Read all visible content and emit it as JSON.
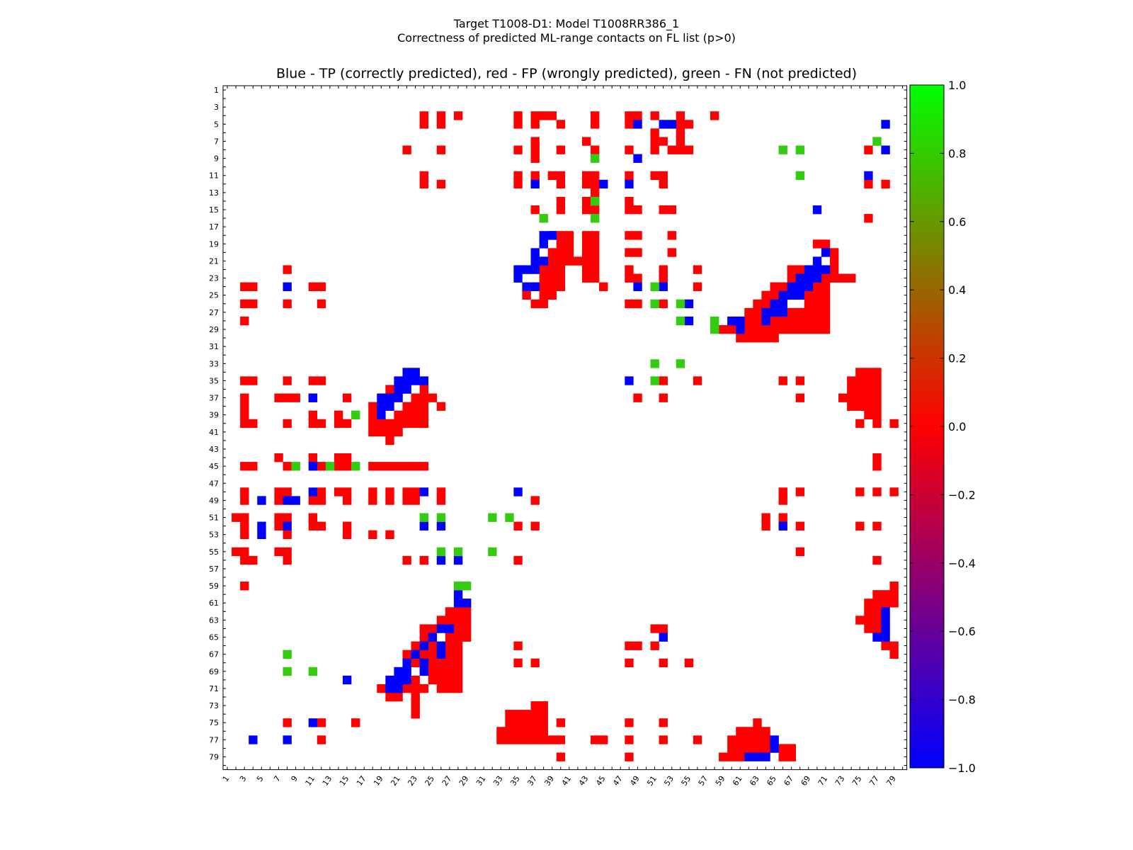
{
  "figure": {
    "suptitle_line1": "Target T1008-D1: Model T1008RR386_1",
    "suptitle_line2": "Correctness of predicted ML-range contacts on FL list (p>0)",
    "axes_title": "Blue - TP (correctly predicted), red - FP (wrongly predicted), green - FN (not predicted)"
  },
  "colors": {
    "tp": "#0000ff",
    "fp": "#ff0000",
    "fn": "#33cc11",
    "frame": "#000000"
  },
  "chart_data": {
    "type": "heatmap",
    "n": 80,
    "xlim": [
      0,
      80
    ],
    "ylim": [
      80,
      0
    ],
    "x_ticks": [
      1,
      3,
      5,
      7,
      9,
      11,
      13,
      15,
      17,
      19,
      21,
      23,
      25,
      27,
      29,
      31,
      33,
      35,
      37,
      39,
      41,
      43,
      45,
      47,
      49,
      51,
      53,
      55,
      57,
      59,
      61,
      63,
      65,
      67,
      69,
      71,
      73,
      75,
      77,
      79
    ],
    "y_ticks": [
      1,
      3,
      5,
      7,
      9,
      11,
      13,
      15,
      17,
      19,
      21,
      23,
      25,
      27,
      29,
      31,
      33,
      35,
      37,
      39,
      41,
      43,
      45,
      47,
      49,
      51,
      53,
      55,
      57,
      59,
      61,
      63,
      65,
      67,
      69,
      71,
      73,
      75,
      77,
      79
    ],
    "value_meaning": {
      "-1": "TP (blue)",
      "0": "FP (red)",
      "1": "FN (green)"
    },
    "colorbar": {
      "range": [
        -1.0,
        1.0
      ],
      "ticks": [
        "1.0",
        "0.8",
        "0.6",
        "0.4",
        "0.2",
        "0.0",
        "−0.2",
        "−0.4",
        "−0.6",
        "−0.8",
        "−1.0"
      ],
      "stops": [
        "#00ff00",
        "#ff0000",
        "#0000ff"
      ]
    },
    "cells": {
      "tp": [
        [
          5,
          49
        ],
        [
          5,
          52
        ],
        [
          5,
          53
        ],
        [
          5,
          78
        ],
        [
          9,
          49
        ],
        [
          8,
          78
        ],
        [
          12,
          45
        ],
        [
          12,
          37
        ],
        [
          12,
          48
        ],
        [
          11,
          76
        ],
        [
          15,
          70
        ],
        [
          18,
          38
        ],
        [
          18,
          39
        ],
        [
          19,
          38
        ],
        [
          20,
          37
        ],
        [
          21,
          37
        ],
        [
          21,
          38
        ],
        [
          21,
          70
        ],
        [
          20,
          71
        ],
        [
          22,
          35
        ],
        [
          22,
          36
        ],
        [
          22,
          37
        ],
        [
          22,
          69
        ],
        [
          22,
          70
        ],
        [
          22,
          71
        ],
        [
          23,
          35
        ],
        [
          23,
          68
        ],
        [
          23,
          69
        ],
        [
          23,
          70
        ],
        [
          24,
          36
        ],
        [
          24,
          37
        ],
        [
          24,
          67
        ],
        [
          24,
          68
        ],
        [
          24,
          69
        ],
        [
          24,
          8
        ],
        [
          24,
          49
        ],
        [
          24,
          52
        ],
        [
          25,
          66
        ],
        [
          25,
          67
        ],
        [
          25,
          68
        ],
        [
          26,
          65
        ],
        [
          26,
          66
        ],
        [
          26,
          55
        ],
        [
          27,
          64
        ],
        [
          27,
          65
        ],
        [
          27,
          66
        ],
        [
          28,
          55
        ],
        [
          28,
          60
        ],
        [
          28,
          61
        ],
        [
          28,
          64
        ],
        [
          29,
          61
        ],
        [
          34,
          22
        ],
        [
          34,
          23
        ],
        [
          35,
          21
        ],
        [
          35,
          22
        ],
        [
          35,
          23
        ],
        [
          35,
          24
        ],
        [
          36,
          21
        ],
        [
          36,
          22
        ],
        [
          37,
          19
        ],
        [
          37,
          20
        ],
        [
          37,
          21
        ],
        [
          37,
          11
        ],
        [
          38,
          19
        ],
        [
          38,
          20
        ],
        [
          39,
          19
        ],
        [
          45,
          11
        ],
        [
          48,
          11
        ],
        [
          48,
          24
        ],
        [
          48,
          35
        ],
        [
          49,
          5
        ],
        [
          49,
          8
        ],
        [
          49,
          9
        ],
        [
          35,
          48
        ],
        [
          52,
          5
        ],
        [
          52,
          8
        ],
        [
          52,
          24
        ],
        [
          52,
          26
        ],
        [
          52,
          66
        ],
        [
          53,
          5
        ],
        [
          56,
          26
        ],
        [
          56,
          28
        ],
        [
          60,
          28
        ],
        [
          61,
          28
        ],
        [
          61,
          29
        ],
        [
          62,
          78
        ],
        [
          63,
          78
        ],
        [
          64,
          26
        ],
        [
          64,
          27
        ],
        [
          64,
          78
        ],
        [
          65,
          25
        ],
        [
          65,
          52
        ],
        [
          65,
          77
        ],
        [
          65,
          78
        ],
        [
          66,
          24
        ],
        [
          66,
          26
        ],
        [
          67,
          23
        ],
        [
          67,
          26
        ],
        [
          68,
          22
        ],
        [
          68,
          24
        ],
        [
          69,
          21
        ],
        [
          69,
          22
        ],
        [
          69,
          24
        ],
        [
          70,
          15
        ],
        [
          70,
          20
        ],
        [
          70,
          21
        ],
        [
          70,
          22
        ],
        [
          71,
          20
        ],
        [
          71,
          21
        ],
        [
          75,
          11
        ],
        [
          77,
          4
        ],
        [
          77,
          8
        ],
        [
          77,
          65
        ],
        [
          78,
          65
        ],
        [
          79,
          62
        ],
        [
          79,
          63
        ],
        [
          79,
          64
        ]
      ],
      "fn": [
        [
          7,
          77
        ],
        [
          8,
          66
        ],
        [
          8,
          68
        ],
        [
          9,
          44
        ],
        [
          11,
          68
        ],
        [
          14,
          44
        ],
        [
          16,
          38
        ],
        [
          16,
          44
        ],
        [
          24,
          51
        ],
        [
          26,
          51
        ],
        [
          26,
          54
        ],
        [
          28,
          54
        ],
        [
          28,
          58
        ],
        [
          29,
          58
        ],
        [
          33,
          51
        ],
        [
          33,
          54
        ],
        [
          35,
          51
        ],
        [
          39,
          16
        ],
        [
          45,
          9
        ],
        [
          45,
          13
        ],
        [
          45,
          16
        ],
        [
          51,
          24
        ],
        [
          51,
          26
        ],
        [
          51,
          32
        ],
        [
          51,
          34
        ],
        [
          55,
          26
        ],
        [
          55,
          28
        ],
        [
          55,
          32
        ],
        [
          59,
          28
        ],
        [
          59,
          29
        ],
        [
          67,
          8
        ],
        [
          69,
          8
        ],
        [
          69,
          11
        ]
      ]
    }
  }
}
